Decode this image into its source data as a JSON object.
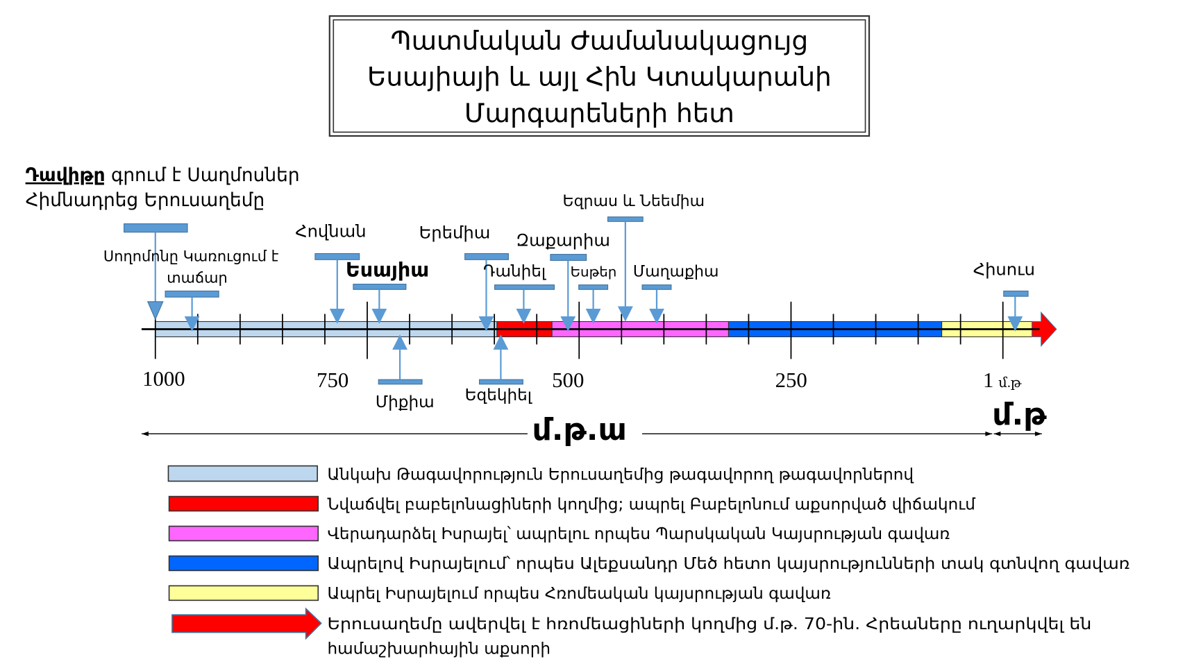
{
  "title": {
    "lines": [
      "Պատմական Ժամանակացույց",
      "Եսայիայի և այլ Հին Կտակարանի",
      "Մարգարեների հետ"
    ]
  },
  "david": {
    "bold": "Դավիթը",
    "rest": " գրում է Սաղմոսներ",
    "line2": "Հիմնադրեց Երուսաղեմը"
  },
  "events_above": {
    "solomon_line1": "Սողոմոնը Կառուցում է",
    "solomon_line2": "տաճար",
    "jonah": "Հովնան",
    "isaiah": "Եսայիա",
    "jeremiah": "Երեմիա",
    "zechariah": "Զաքարիա",
    "daniel": "Դանիել",
    "ezra_nehemiah": "Եզրաս և Նեեմիա",
    "esther": "Եսթեր",
    "malachi": "Մաղաքիա",
    "jesus": "Հիսուս"
  },
  "events_below": {
    "micah": "Միքիա",
    "ezekiel": "Եզեկիել"
  },
  "axis": {
    "ticks": [
      "1000",
      "750",
      "500",
      "250",
      "1"
    ],
    "ad_suffix": "մ.թ",
    "bc_label": "մ.թ.ա",
    "ad_label": "մ.թ"
  },
  "periods": [
    {
      "color": "#bdd7ee",
      "label": "Անկախ Թագավորություն Երուսաղեմից թագավորող թագավորներով"
    },
    {
      "color": "#ff0000",
      "label": "Նվաճվել բաբելոնացիների կողմից; ապրել Բաբելոնում աքսորված վիճակում"
    },
    {
      "color": "#ff66ff",
      "label": "Վերադարձել  Իսրայել՝ ապրելու որպես Պարսկական Կայսրության գավառ"
    },
    {
      "color": "#0066ff",
      "label": "Ապրելով Իսրայելում՝ որպես Ալեքսանդր Մեծ հետո կայսրությունների տակ գտնվող գավառ"
    },
    {
      "color": "#ffff99",
      "label": "Ապրել Իսրայելում որպես Հռոմեական կայսրության գավառ"
    }
  ],
  "arrow_legend": {
    "color": "#ff0000",
    "line1": "Երուսաղեմը ավերվել է հռոմեացիների կողմից մ.թ. 70-ին. Հրեաները ուղարկվել են",
    "line2": "համաշխարհային աքսորի"
  }
}
